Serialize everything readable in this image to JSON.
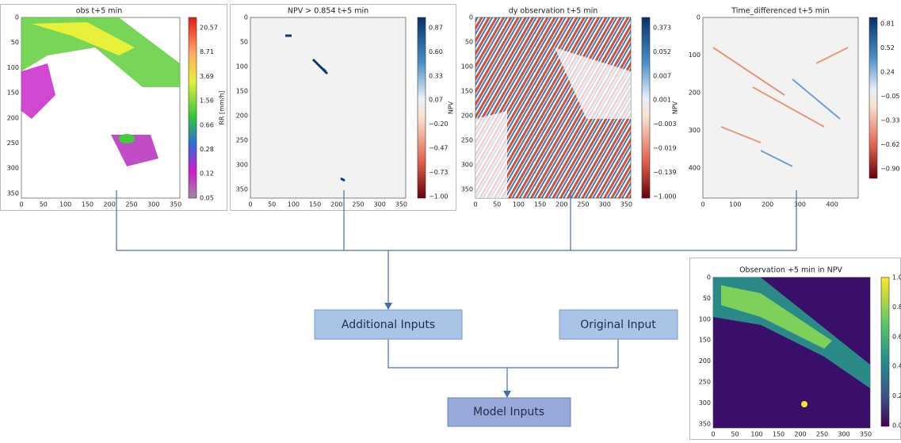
{
  "panels": [
    {
      "title": "obs t+5 min",
      "xticks": [
        "0",
        "50",
        "100",
        "150",
        "200",
        "250",
        "300",
        "350"
      ],
      "yticks": [
        "0",
        "50",
        "100",
        "150",
        "200",
        "250",
        "300",
        "350"
      ],
      "cbar_ticks": [
        "20.57",
        "8.71",
        "3.69",
        "1.56",
        "0.66",
        "0.28",
        "0.12",
        "0.05"
      ],
      "cbar_label": "RR [mm/h]"
    },
    {
      "title": "NPV > 0.854  t+5 min",
      "xticks": [
        "0",
        "50",
        "100",
        "150",
        "200",
        "250",
        "300",
        "350"
      ],
      "yticks": [
        "0",
        "50",
        "100",
        "150",
        "200",
        "250",
        "300",
        "350"
      ],
      "cbar_ticks": [
        "0.87",
        "0.60",
        "0.33",
        "0.07",
        "−0.20",
        "−0.47",
        "−0.73",
        "−1.00"
      ],
      "cbar_label": "NPV"
    },
    {
      "title": "dy observation t+5 min",
      "xticks": [
        "0",
        "50",
        "100",
        "150",
        "200",
        "250",
        "300",
        "350"
      ],
      "yticks": [
        "0",
        "50",
        "100",
        "150",
        "200",
        "250",
        "300",
        "350"
      ],
      "cbar_ticks": [
        "0.373",
        "0.052",
        "0.007",
        "0.001",
        "−0.003",
        "−0.019",
        "−0.139",
        "−1.000"
      ],
      "cbar_label": "NPV"
    },
    {
      "title": "Time_differenced t+5 min",
      "xticks": [
        "0",
        "100",
        "200",
        "300",
        "400"
      ],
      "yticks": [
        "0",
        "100",
        "200",
        "300",
        "400"
      ],
      "cbar_ticks": [
        "0.81",
        "0.52",
        "0.24",
        "−0.05",
        "−0.33",
        "−0.62",
        "−0.90"
      ]
    },
    {
      "title": "Observation +5 min in NPV",
      "xticks": [
        "0",
        "50",
        "100",
        "150",
        "200",
        "250",
        "300",
        "350"
      ],
      "yticks": [
        "0",
        "50",
        "100",
        "150",
        "200",
        "250",
        "300",
        "350"
      ],
      "cbar_ticks": [
        "1.0",
        "0.8",
        "0.6",
        "0.4",
        "0.2",
        "0.0"
      ]
    }
  ],
  "boxes": {
    "additional": "Additional Inputs",
    "original": "Original Input",
    "model": "Model Inputs"
  }
}
